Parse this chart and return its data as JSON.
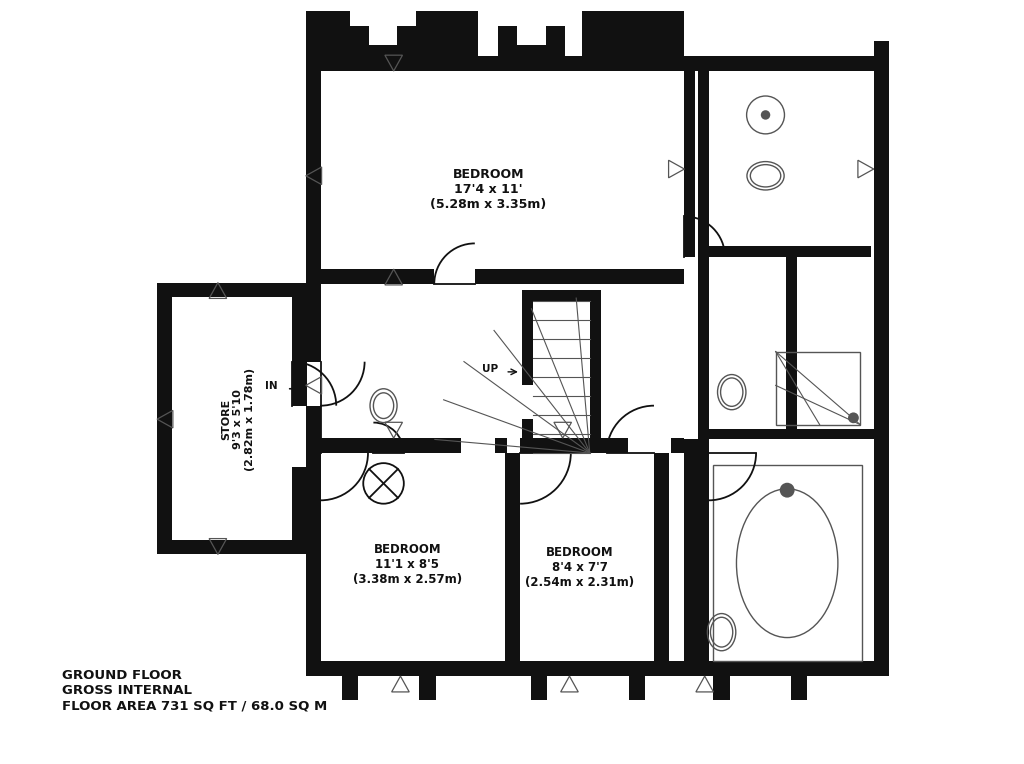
{
  "bg_color": "#ffffff",
  "wall_color": "#111111",
  "line_color": "#111111",
  "thin_color": "#555555",
  "text_color": "#111111",
  "title_text": "GROUND FLOOR\nGROSS INTERNAL\nFLOOR AREA 731 SQ FT / 68.0 SQ M",
  "xlim": [
    -0.5,
    14.0
  ],
  "ylim": [
    -0.3,
    11.0
  ]
}
